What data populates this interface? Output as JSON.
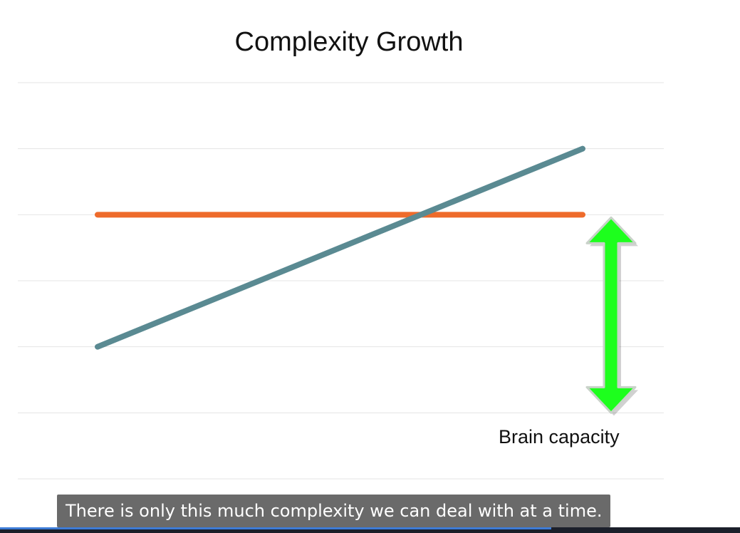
{
  "chart_data": {
    "type": "line",
    "title": "Complexity Growth",
    "xlabel": "",
    "ylabel": "",
    "grid": true,
    "xlim": [
      0,
      10
    ],
    "ylim": [
      0,
      6
    ],
    "series": [
      {
        "name": "",
        "color": "#ee6b2b",
        "x": [
          0,
          10
        ],
        "y": [
          4,
          4
        ]
      },
      {
        "name": "",
        "color": "#5a8a92",
        "x": [
          0,
          10
        ],
        "y": [
          2,
          5
        ]
      }
    ],
    "annotations": [
      {
        "text": "Brain capacity",
        "arrow": "double-headed",
        "from_y": 4,
        "to_y": 1,
        "color": "#1dff1d"
      }
    ]
  },
  "caption": {
    "text": "There is only this much complexity we can deal with at a time."
  },
  "player": {
    "progress_fraction": 0.745,
    "progress_color": "#3d7bd6"
  }
}
